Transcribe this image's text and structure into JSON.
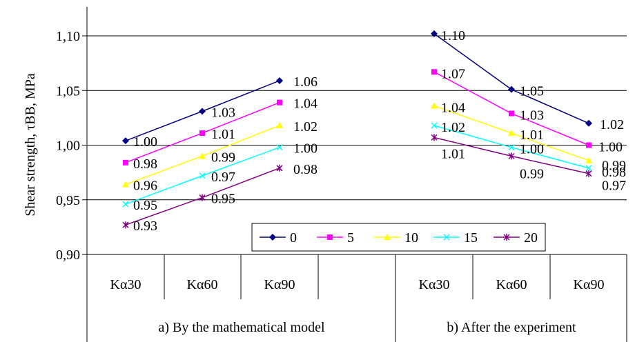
{
  "chart_data": {
    "type": "line",
    "ylabel": "Shear strength, τBB, MPa",
    "ylim": [
      0.9,
      1.1
    ],
    "yticks": [
      "0,90",
      "0,95",
      "1,00",
      "1,05",
      "1,10"
    ],
    "ytick_values": [
      0.9,
      0.95,
      1.0,
      1.05,
      1.1
    ],
    "grid": true,
    "legend_position": "bottom-center",
    "groups": [
      {
        "label": "a) By the mathematical model",
        "categories": [
          "Kα30",
          "Kα60",
          "Kα90"
        ]
      },
      {
        "label": "b) After the experiment",
        "categories": [
          "Kα30",
          "Kα60",
          "Kα90"
        ]
      }
    ],
    "series": [
      {
        "name": "0",
        "color": "#000080",
        "marker": "diamond",
        "a": [
          1.004,
          1.031,
          1.059
        ],
        "b": [
          1.102,
          1.051,
          1.02
        ],
        "a_labels": [
          "1.00",
          "1.03",
          "1.06"
        ],
        "b_labels": [
          "1.10",
          "1.05",
          "1.02"
        ]
      },
      {
        "name": "5",
        "color": "#ff00ff",
        "marker": "square",
        "a": [
          0.984,
          1.011,
          1.039
        ],
        "b": [
          1.067,
          1.029,
          1.0
        ],
        "a_labels": [
          "0.98",
          "1.01",
          "1.04"
        ],
        "b_labels": [
          "1.07",
          "1.03",
          "1.00"
        ]
      },
      {
        "name": "10",
        "color": "#ffff00",
        "marker": "triangle",
        "a": [
          0.964,
          0.99,
          1.018
        ],
        "b": [
          1.036,
          1.011,
          0.986
        ],
        "a_labels": [
          "0.96",
          "0.99",
          "1.02"
        ],
        "b_labels": [
          "1.04",
          "1.01",
          "0.99"
        ]
      },
      {
        "name": "15",
        "color": "#00ffff",
        "marker": "x",
        "a": [
          0.946,
          0.972,
          0.998
        ],
        "b": [
          1.018,
          0.998,
          0.979
        ],
        "a_labels": [
          "0.95",
          "0.97",
          "1.00"
        ],
        "b_labels": [
          "1.02",
          "1.00",
          "0.98"
        ]
      },
      {
        "name": "20",
        "color": "#800080",
        "marker": "asterisk",
        "a": [
          0.927,
          0.952,
          0.979
        ],
        "b": [
          1.007,
          0.99,
          0.974
        ],
        "a_labels": [
          "0.93",
          "0.95",
          "0.98"
        ],
        "b_labels": [
          "1.01",
          "0.99",
          "0.97"
        ]
      }
    ]
  }
}
